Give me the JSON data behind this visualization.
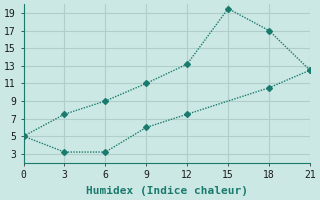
{
  "xlabel": "Humidex (Indice chaleur)",
  "line1_x": [
    0,
    3,
    6,
    9,
    12,
    15,
    18,
    21
  ],
  "line1_y": [
    5,
    7.5,
    9,
    11,
    13.2,
    19.5,
    17,
    12.5
  ],
  "line2_x": [
    0,
    3,
    6,
    9,
    12,
    18,
    21
  ],
  "line2_y": [
    5,
    3.2,
    3.2,
    6,
    7.5,
    10.5,
    12.5
  ],
  "line_color": "#1a7a6e",
  "bg_color": "#cce8e4",
  "grid_color": "#b0ceca",
  "xlim": [
    0,
    21
  ],
  "ylim": [
    2,
    20
  ],
  "xticks": [
    0,
    3,
    6,
    9,
    12,
    15,
    18,
    21
  ],
  "yticks": [
    3,
    5,
    7,
    9,
    11,
    13,
    15,
    17,
    19
  ],
  "marker": "D",
  "marker_size": 3,
  "line_width": 1.0,
  "tick_fontsize": 7,
  "label_fontsize": 8
}
